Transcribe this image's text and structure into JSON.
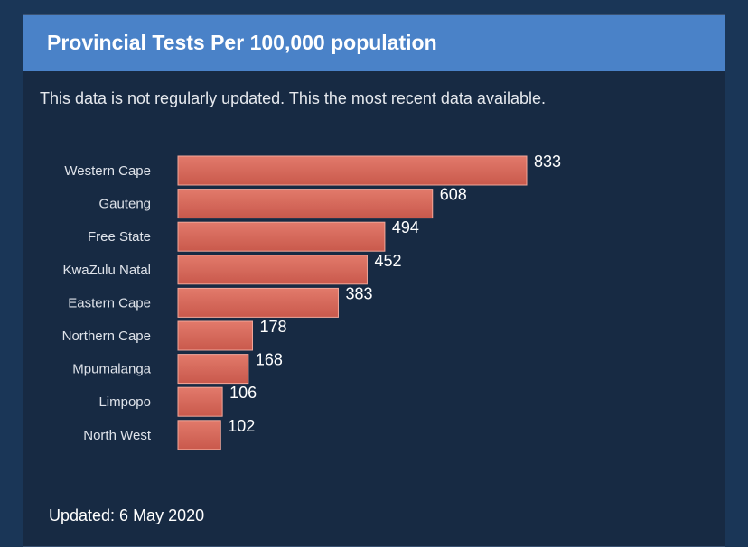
{
  "card": {
    "title": "Provincial Tests Per 100,000 population",
    "note": "This data is not regularly updated. This the most recent data available.",
    "updated": "Updated: 6 May 2020"
  },
  "colors": {
    "header": "#4a82c8",
    "background": "#172a43",
    "bar_top": "#e27a6b",
    "bar_bottom": "#c9594c",
    "bar_border": "#f2a79a"
  },
  "chart_data": {
    "type": "bar",
    "orientation": "horizontal",
    "title": "Provincial Tests Per 100,000 population",
    "xlabel": "",
    "ylabel": "",
    "categories": [
      "Western Cape",
      "Gauteng",
      "Free State",
      "KwaZulu Natal",
      "Eastern Cape",
      "Northern Cape",
      "Mpumalanga",
      "Limpopo",
      "North West"
    ],
    "values": [
      833,
      608,
      494,
      452,
      383,
      178,
      168,
      106,
      102
    ],
    "xlim": [
      0,
      833
    ],
    "grid": false,
    "legend": "none"
  }
}
